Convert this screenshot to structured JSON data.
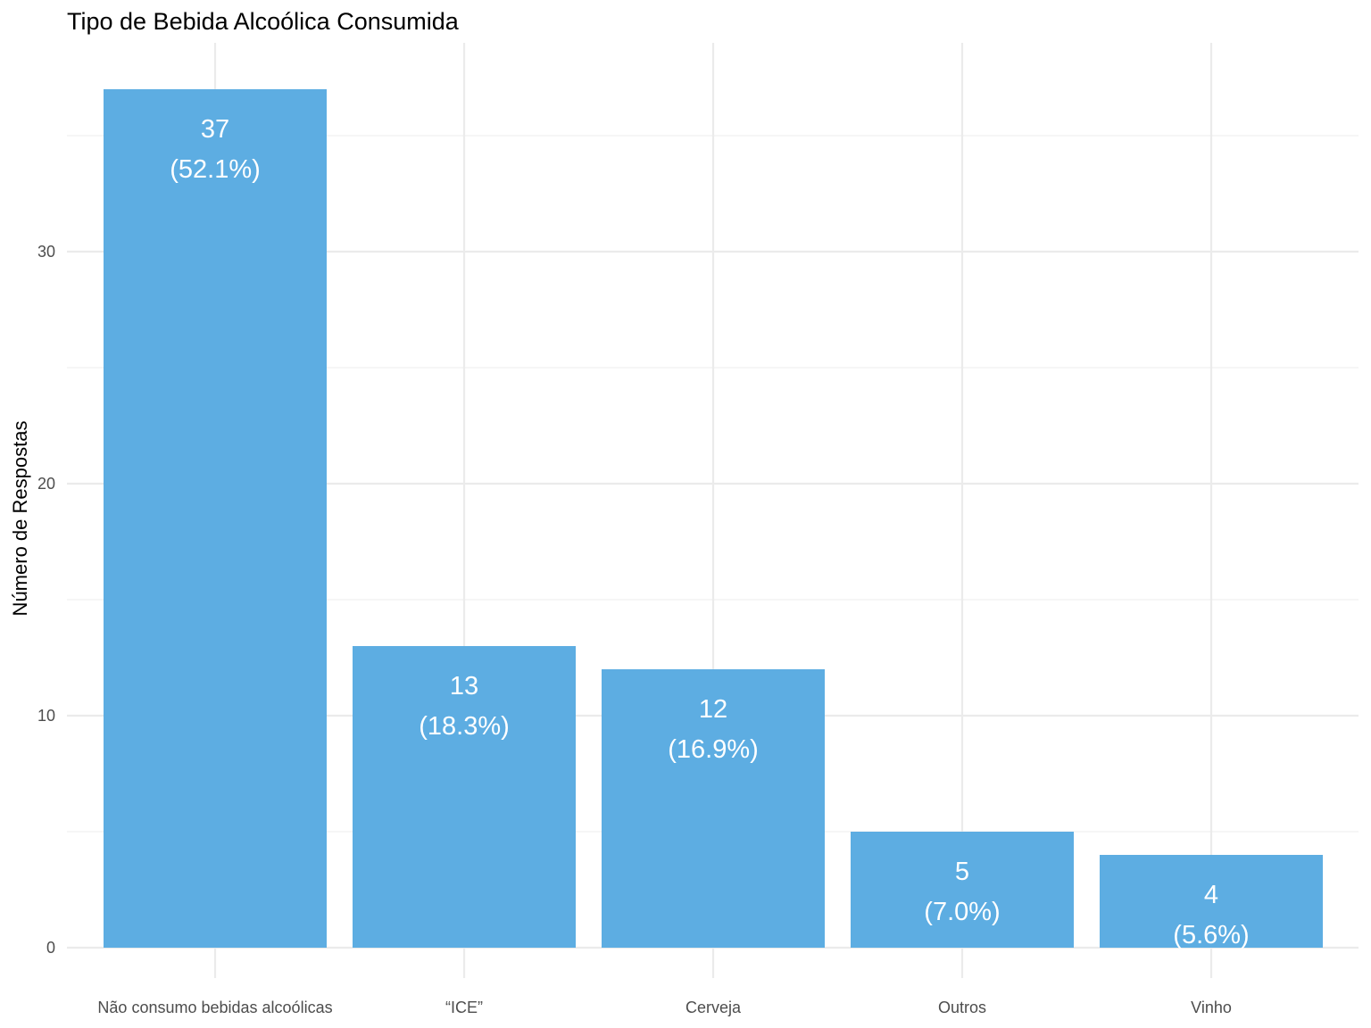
{
  "chart_data": {
    "type": "bar",
    "title": "Tipo de Bebida Alcoólica Consumida",
    "xlabel": "",
    "ylabel": "Número de Respostas",
    "categories": [
      "Não consumo bebidas alcoólicas",
      "“ICE”",
      "Cerveja",
      "Outros",
      "Vinho"
    ],
    "values": [
      37,
      13,
      12,
      5,
      4
    ],
    "labels": [
      [
        "37",
        "(52.1%)"
      ],
      [
        "13",
        "(18.3%)"
      ],
      [
        "12",
        "(16.9%)"
      ],
      [
        "5",
        "(7.0%)"
      ],
      [
        "4",
        "(5.6%)"
      ]
    ],
    "ylim": [
      0,
      37
    ],
    "yticks": [
      0,
      10,
      20,
      30
    ],
    "grid": true,
    "bar_color": "#5DADE2",
    "legend": "none"
  }
}
